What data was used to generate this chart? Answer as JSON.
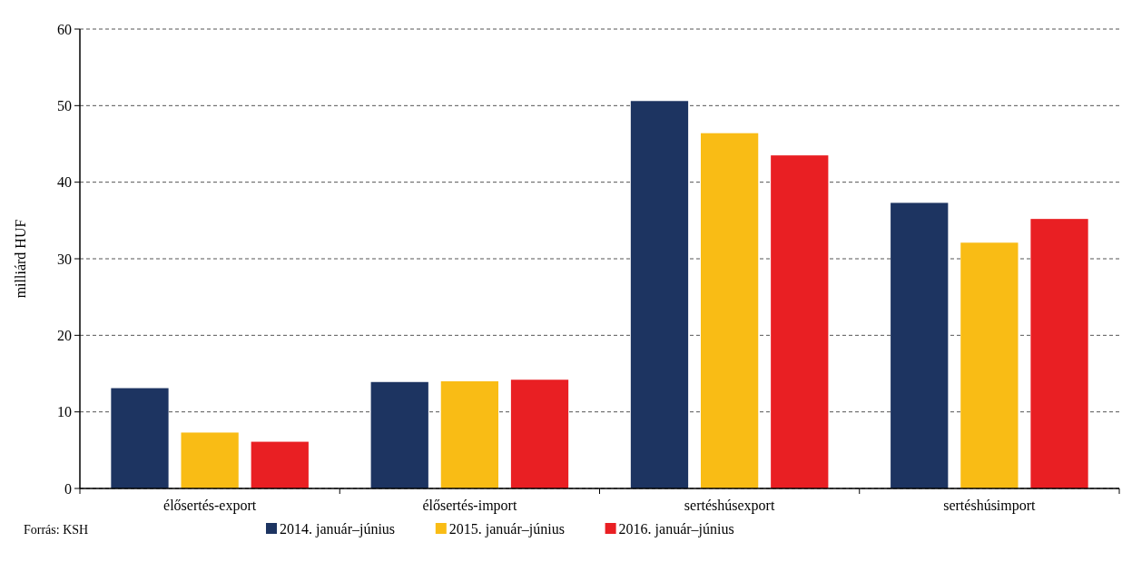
{
  "chart_data": {
    "type": "bar",
    "ylabel": "milliárd HUF",
    "categories": [
      "élősertés-export",
      "élősertés-import",
      "sertéshúsexport",
      "sertéshúsimport"
    ],
    "series": [
      {
        "name": "2014. január–június",
        "color": "#1d3461",
        "values": [
          13.1,
          13.9,
          50.6,
          37.3
        ]
      },
      {
        "name": "2015. január–június",
        "color": "#f9bc15",
        "values": [
          7.3,
          14.0,
          46.4,
          32.1
        ]
      },
      {
        "name": "2016. január–június",
        "color": "#e91f23",
        "values": [
          6.1,
          14.2,
          43.5,
          35.2
        ]
      }
    ],
    "ylim": [
      0,
      60
    ],
    "yticks": [
      0,
      10,
      20,
      30,
      40,
      50,
      60
    ],
    "grid": "y",
    "legend": "bottom",
    "annotations": [
      "Forrás: KSH"
    ]
  }
}
